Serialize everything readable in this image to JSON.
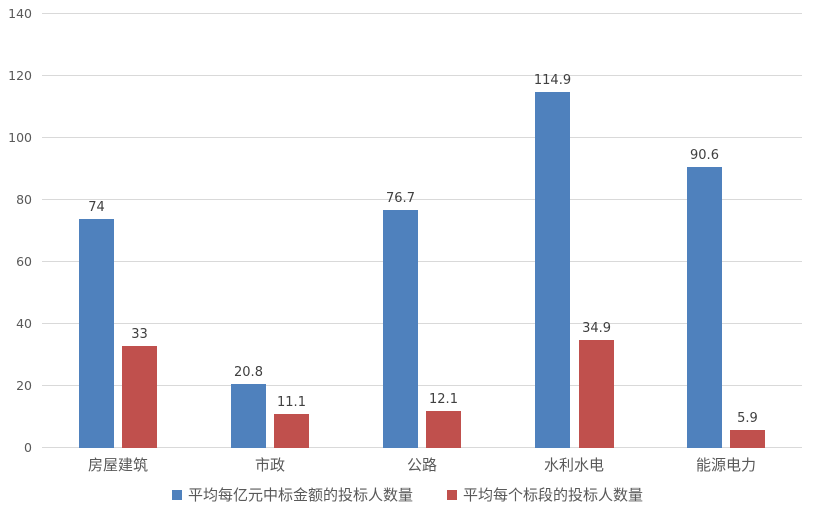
{
  "chart_data": {
    "type": "bar",
    "title": "",
    "xlabel": "",
    "ylabel": "",
    "categories": [
      "房屋建筑",
      "市政",
      "公路",
      "水利水电",
      "能源电力"
    ],
    "series": [
      {
        "name": "平均每亿元中标金额的投标人数量",
        "color": "#4F81BD",
        "values": [
          74,
          20.8,
          76.7,
          114.9,
          90.6
        ],
        "labels": [
          "74",
          "20.8",
          "76.7",
          "114.9",
          "90.6"
        ]
      },
      {
        "name": "平均每个标段的投标人数量",
        "color": "#C0504D",
        "values": [
          33,
          11.1,
          12.1,
          34.9,
          5.9
        ],
        "labels": [
          "33",
          "11.1",
          "12.1",
          "34.9",
          "5.9"
        ]
      }
    ],
    "ylim": [
      0,
      140
    ],
    "yticks": [
      0,
      20,
      40,
      60,
      80,
      100,
      120,
      140
    ],
    "grid": true,
    "legend_position": "bottom"
  },
  "colors": {
    "gridline": "#D9D9D9",
    "axis_text": "#595959",
    "data_label": "#404040",
    "background": "#FFFFFF"
  }
}
